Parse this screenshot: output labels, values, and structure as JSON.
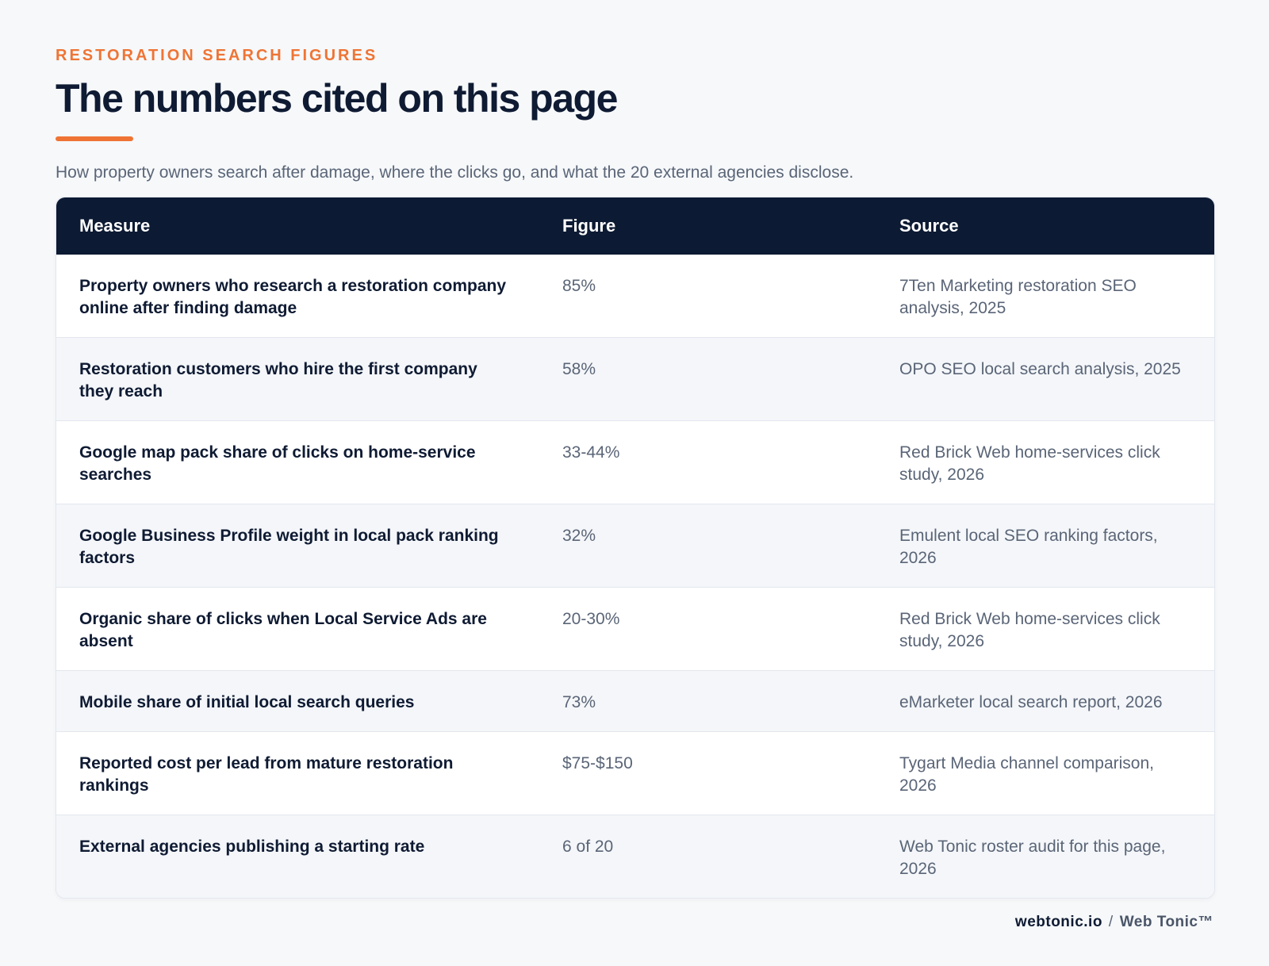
{
  "header": {
    "eyebrow": "RESTORATION SEARCH FIGURES",
    "title": "The numbers cited on this page",
    "subtitle": "How property owners search after damage, where the clicks go, and what the 20 external agencies disclose."
  },
  "table": {
    "columns": [
      "Measure",
      "Figure",
      "Source"
    ],
    "rows": [
      {
        "measure": "Property owners who research a restoration company online after finding damage",
        "figure": "85%",
        "source": "7Ten Marketing restoration SEO analysis, 2025"
      },
      {
        "measure": "Restoration customers who hire the first company they reach",
        "figure": "58%",
        "source": "OPO SEO local search analysis, 2025"
      },
      {
        "measure": "Google map pack share of clicks on home-service searches",
        "figure": "33-44%",
        "source": "Red Brick Web home-services click study, 2026"
      },
      {
        "measure": "Google Business Profile weight in local pack ranking factors",
        "figure": "32%",
        "source": "Emulent local SEO ranking factors, 2026"
      },
      {
        "measure": "Organic share of clicks when Local Service Ads are absent",
        "figure": "20-30%",
        "source": "Red Brick Web home-services click study, 2026"
      },
      {
        "measure": "Mobile share of initial local search queries",
        "figure": "73%",
        "source": "eMarketer local search report, 2026"
      },
      {
        "measure": "Reported cost per lead from mature restoration rankings",
        "figure": "$75-$150",
        "source": "Tygart Media channel comparison, 2026"
      },
      {
        "measure": "External agencies publishing a starting rate",
        "figure": "6 of 20",
        "source": "Web Tonic roster audit for this page, 2026"
      }
    ]
  },
  "footer": {
    "domain": "webtonic.io",
    "separator": "/",
    "brand": "Web Tonic™"
  },
  "colors": {
    "accent": "#ef7434",
    "header_bg": "#0c1a33",
    "text_dark": "#0f1b33",
    "text_muted": "#5a6577",
    "page_bg": "#f6f8fa"
  }
}
